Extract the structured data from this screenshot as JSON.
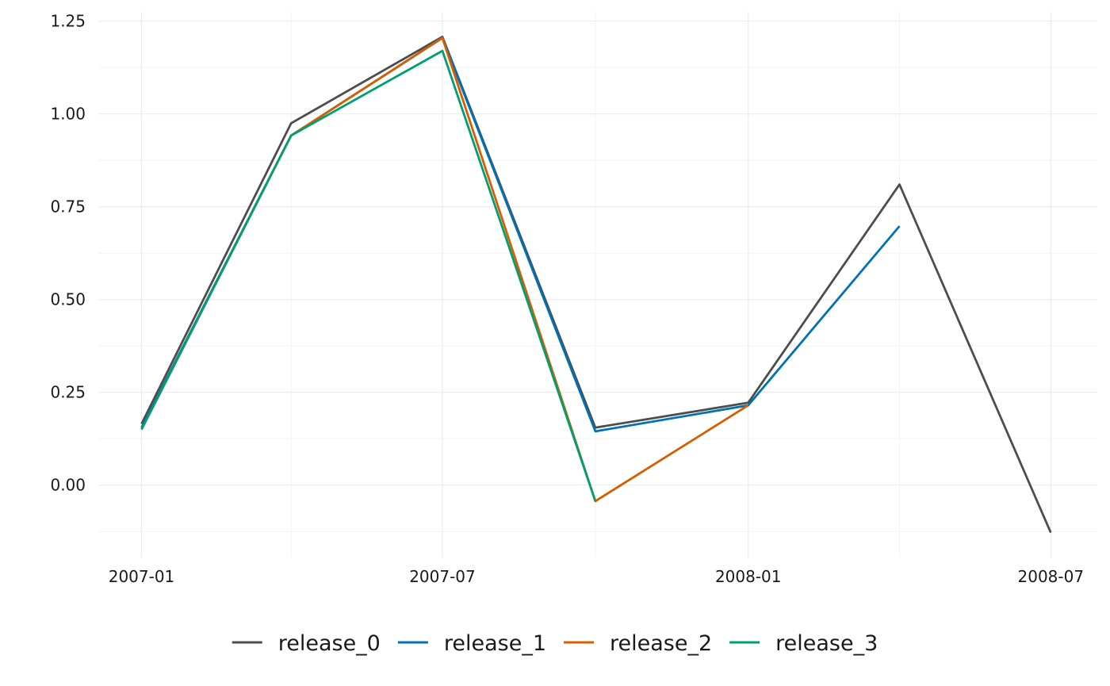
{
  "chart_data": {
    "type": "line",
    "x_type": "date",
    "x": [
      "2007-01-01",
      "2007-04-01",
      "2007-07-01",
      "2007-10-01",
      "2008-01-01",
      "2008-04-01",
      "2008-07-01"
    ],
    "series": [
      {
        "name": "release_0",
        "color": "#4d4d4d",
        "values": [
          0.165,
          0.975,
          1.208,
          0.155,
          0.222,
          0.81,
          -0.128
        ]
      },
      {
        "name": "release_1",
        "color": "#0072b2",
        "values": [
          0.155,
          0.942,
          1.205,
          0.145,
          0.215,
          0.698,
          null
        ]
      },
      {
        "name": "release_2",
        "color": "#d55e00",
        "values": [
          0.15,
          0.942,
          1.205,
          -0.043,
          0.215,
          null,
          null
        ]
      },
      {
        "name": "release_3",
        "color": "#009e73",
        "values": [
          0.15,
          0.942,
          1.17,
          -0.043,
          null,
          null,
          null
        ]
      }
    ],
    "x_ticks": [
      {
        "date": "2007-01-01",
        "label": "2007-01"
      },
      {
        "date": "2007-07-01",
        "label": "2007-07"
      },
      {
        "date": "2008-01-01",
        "label": "2008-01"
      },
      {
        "date": "2008-07-01",
        "label": "2008-07"
      }
    ],
    "x_minor_ticks": [
      "2007-04-01",
      "2007-10-01",
      "2008-04-01"
    ],
    "xlim": [
      "2006-12-06",
      "2008-07-29"
    ],
    "y_ticks": [
      {
        "value": 0.0,
        "label": "0.00"
      },
      {
        "value": 0.25,
        "label": "0.25"
      },
      {
        "value": 0.5,
        "label": "0.50"
      },
      {
        "value": 0.75,
        "label": "0.75"
      },
      {
        "value": 1.0,
        "label": "1.00"
      },
      {
        "value": 1.25,
        "label": "1.25"
      }
    ],
    "y_minor_ticks": [
      -0.125,
      0.125,
      0.375,
      0.625,
      0.875,
      1.125
    ],
    "ylim": [
      -0.195,
      1.275
    ],
    "title": "",
    "xlabel": "",
    "ylabel": "",
    "grid": true,
    "legend_position": "bottom"
  }
}
